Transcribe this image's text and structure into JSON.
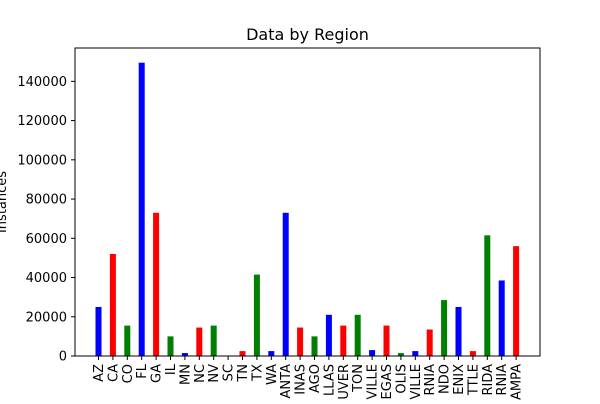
{
  "chart_data": {
    "type": "bar",
    "title": "Data by Region",
    "xlabel": "",
    "ylabel": "Instances",
    "ylim": [
      0,
      157000
    ],
    "yticks": [
      0,
      20000,
      40000,
      60000,
      80000,
      100000,
      120000,
      140000
    ],
    "ytick_labels": [
      "0",
      "20000",
      "40000",
      "60000",
      "80000",
      "100000",
      "120000",
      "140000"
    ],
    "grid": false,
    "legend": "none",
    "categories": [
      "AZ",
      "CA",
      "CO",
      "FL",
      "GA",
      "IL",
      "MN",
      "NC",
      "NV",
      "SC",
      "TN",
      "TX",
      "WA",
      "ANTA",
      "INAS",
      "AGO",
      "LLAS",
      "UVER",
      "TON",
      "VILLE",
      "EGAS",
      "OLIS",
      "VILLE",
      "RNIA",
      "NDO",
      "ENIX",
      "TTLE",
      "RIDA",
      "RNIA",
      "AMPA"
    ],
    "values": [
      25000,
      52000,
      15500,
      149500,
      73000,
      10000,
      1500,
      14500,
      15500,
      0,
      2500,
      41500,
      2500,
      73000,
      14500,
      10000,
      21000,
      15500,
      21000,
      3000,
      15500,
      1500,
      2500,
      13500,
      28500,
      25000,
      2500,
      61500,
      38500,
      56000
    ],
    "bar_colors": [
      "#0000ff",
      "#ff0000",
      "#008000",
      "#0000ff",
      "#ff0000",
      "#008000",
      "#0000ff",
      "#ff0000",
      "#008000",
      "#0000ff",
      "#ff0000",
      "#008000",
      "#0000ff",
      "#0000ff",
      "#ff0000",
      "#008000",
      "#0000ff",
      "#ff0000",
      "#008000",
      "#0000ff",
      "#ff0000",
      "#008000",
      "#0000ff",
      "#ff0000",
      "#008000",
      "#0000ff",
      "#ff0000",
      "#008000",
      "#0000ff",
      "#ff0000"
    ]
  }
}
